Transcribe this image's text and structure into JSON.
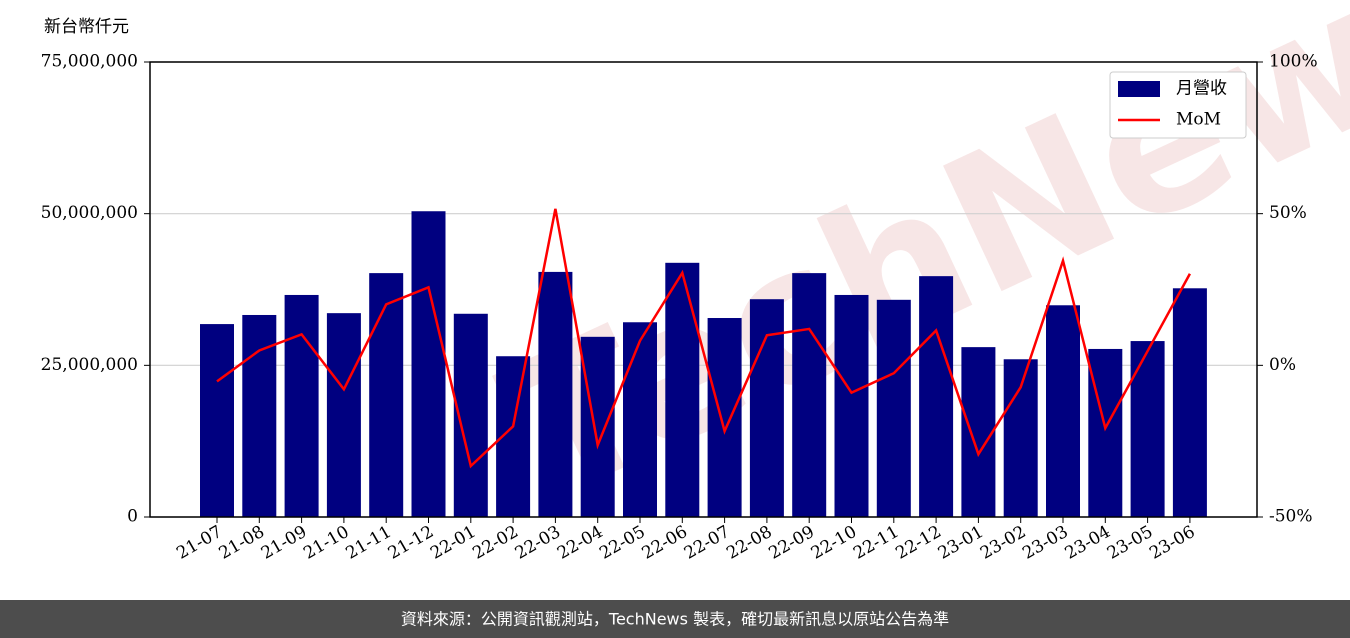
{
  "chart_data": {
    "type": "bar",
    "y_label": "新台幣仟元",
    "categories": [
      "21-07",
      "21-08",
      "21-09",
      "21-10",
      "21-11",
      "21-12",
      "22-01",
      "22-02",
      "22-03",
      "22-04",
      "22-05",
      "22-06",
      "22-07",
      "22-08",
      "22-09",
      "22-10",
      "22-11",
      "22-12",
      "23-01",
      "23-02",
      "23-03",
      "23-04",
      "23-05",
      "23-06"
    ],
    "series": [
      {
        "name": "月營收",
        "color": "#000080",
        "type": "bar",
        "values": [
          31800000,
          33300000,
          36600000,
          33600000,
          40200000,
          50400000,
          33500000,
          26500000,
          40400000,
          29700000,
          32100000,
          41900000,
          32800000,
          35900000,
          40200000,
          36600000,
          35800000,
          39700000,
          28000000,
          26000000,
          34900000,
          27700000,
          29000000,
          37700000
        ]
      },
      {
        "name": "MoM",
        "color": "#ff0000",
        "type": "line",
        "axis": "y2",
        "values": [
          -5.3,
          4.9,
          10.2,
          -7.9,
          20.1,
          25.7,
          -33.2,
          -20.1,
          51.6,
          -26.3,
          8.1,
          30.5,
          -21.7,
          9.9,
          12.0,
          -9,
          -2.6,
          11.5,
          -29.3,
          -7.2,
          34.5,
          -20.7,
          4.7,
          30.2
        ]
      }
    ],
    "ylim": [
      0,
      75000000
    ],
    "yticks": [
      0,
      {
        "value": 25000000,
        "label": "25,000,000"
      },
      {
        "value": 50000000,
        "label": "50,000,000"
      },
      {
        "value": 75000000,
        "label": "75,000,000"
      }
    ],
    "y2lim": [
      -50,
      100
    ],
    "y2ticks": [
      {
        "value": -50,
        "label": "-50%"
      },
      {
        "value": 0,
        "label": "0%"
      },
      {
        "value": 50,
        "label": "50%"
      },
      {
        "value": 100,
        "label": "100%"
      }
    ],
    "grid": true,
    "legend": "upper right"
  },
  "watermark": "TechNews",
  "footer": "資料來源：公開資訊觀測站，TechNews 製表，確切最新訊息以原站公告為準"
}
